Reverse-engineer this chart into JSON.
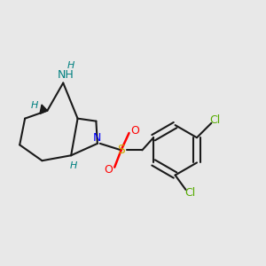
{
  "bg_color": "#e8e8e8",
  "atom_colors": {
    "N": "#0000ff",
    "NH": "#008080",
    "S": "#ccaa00",
    "O": "#ff0000",
    "Cl": "#55aa00",
    "C": "#000000",
    "H": "#008080"
  },
  "bond_color": "#1a1a1a",
  "line_width": 1.5,
  "font_size": 9
}
